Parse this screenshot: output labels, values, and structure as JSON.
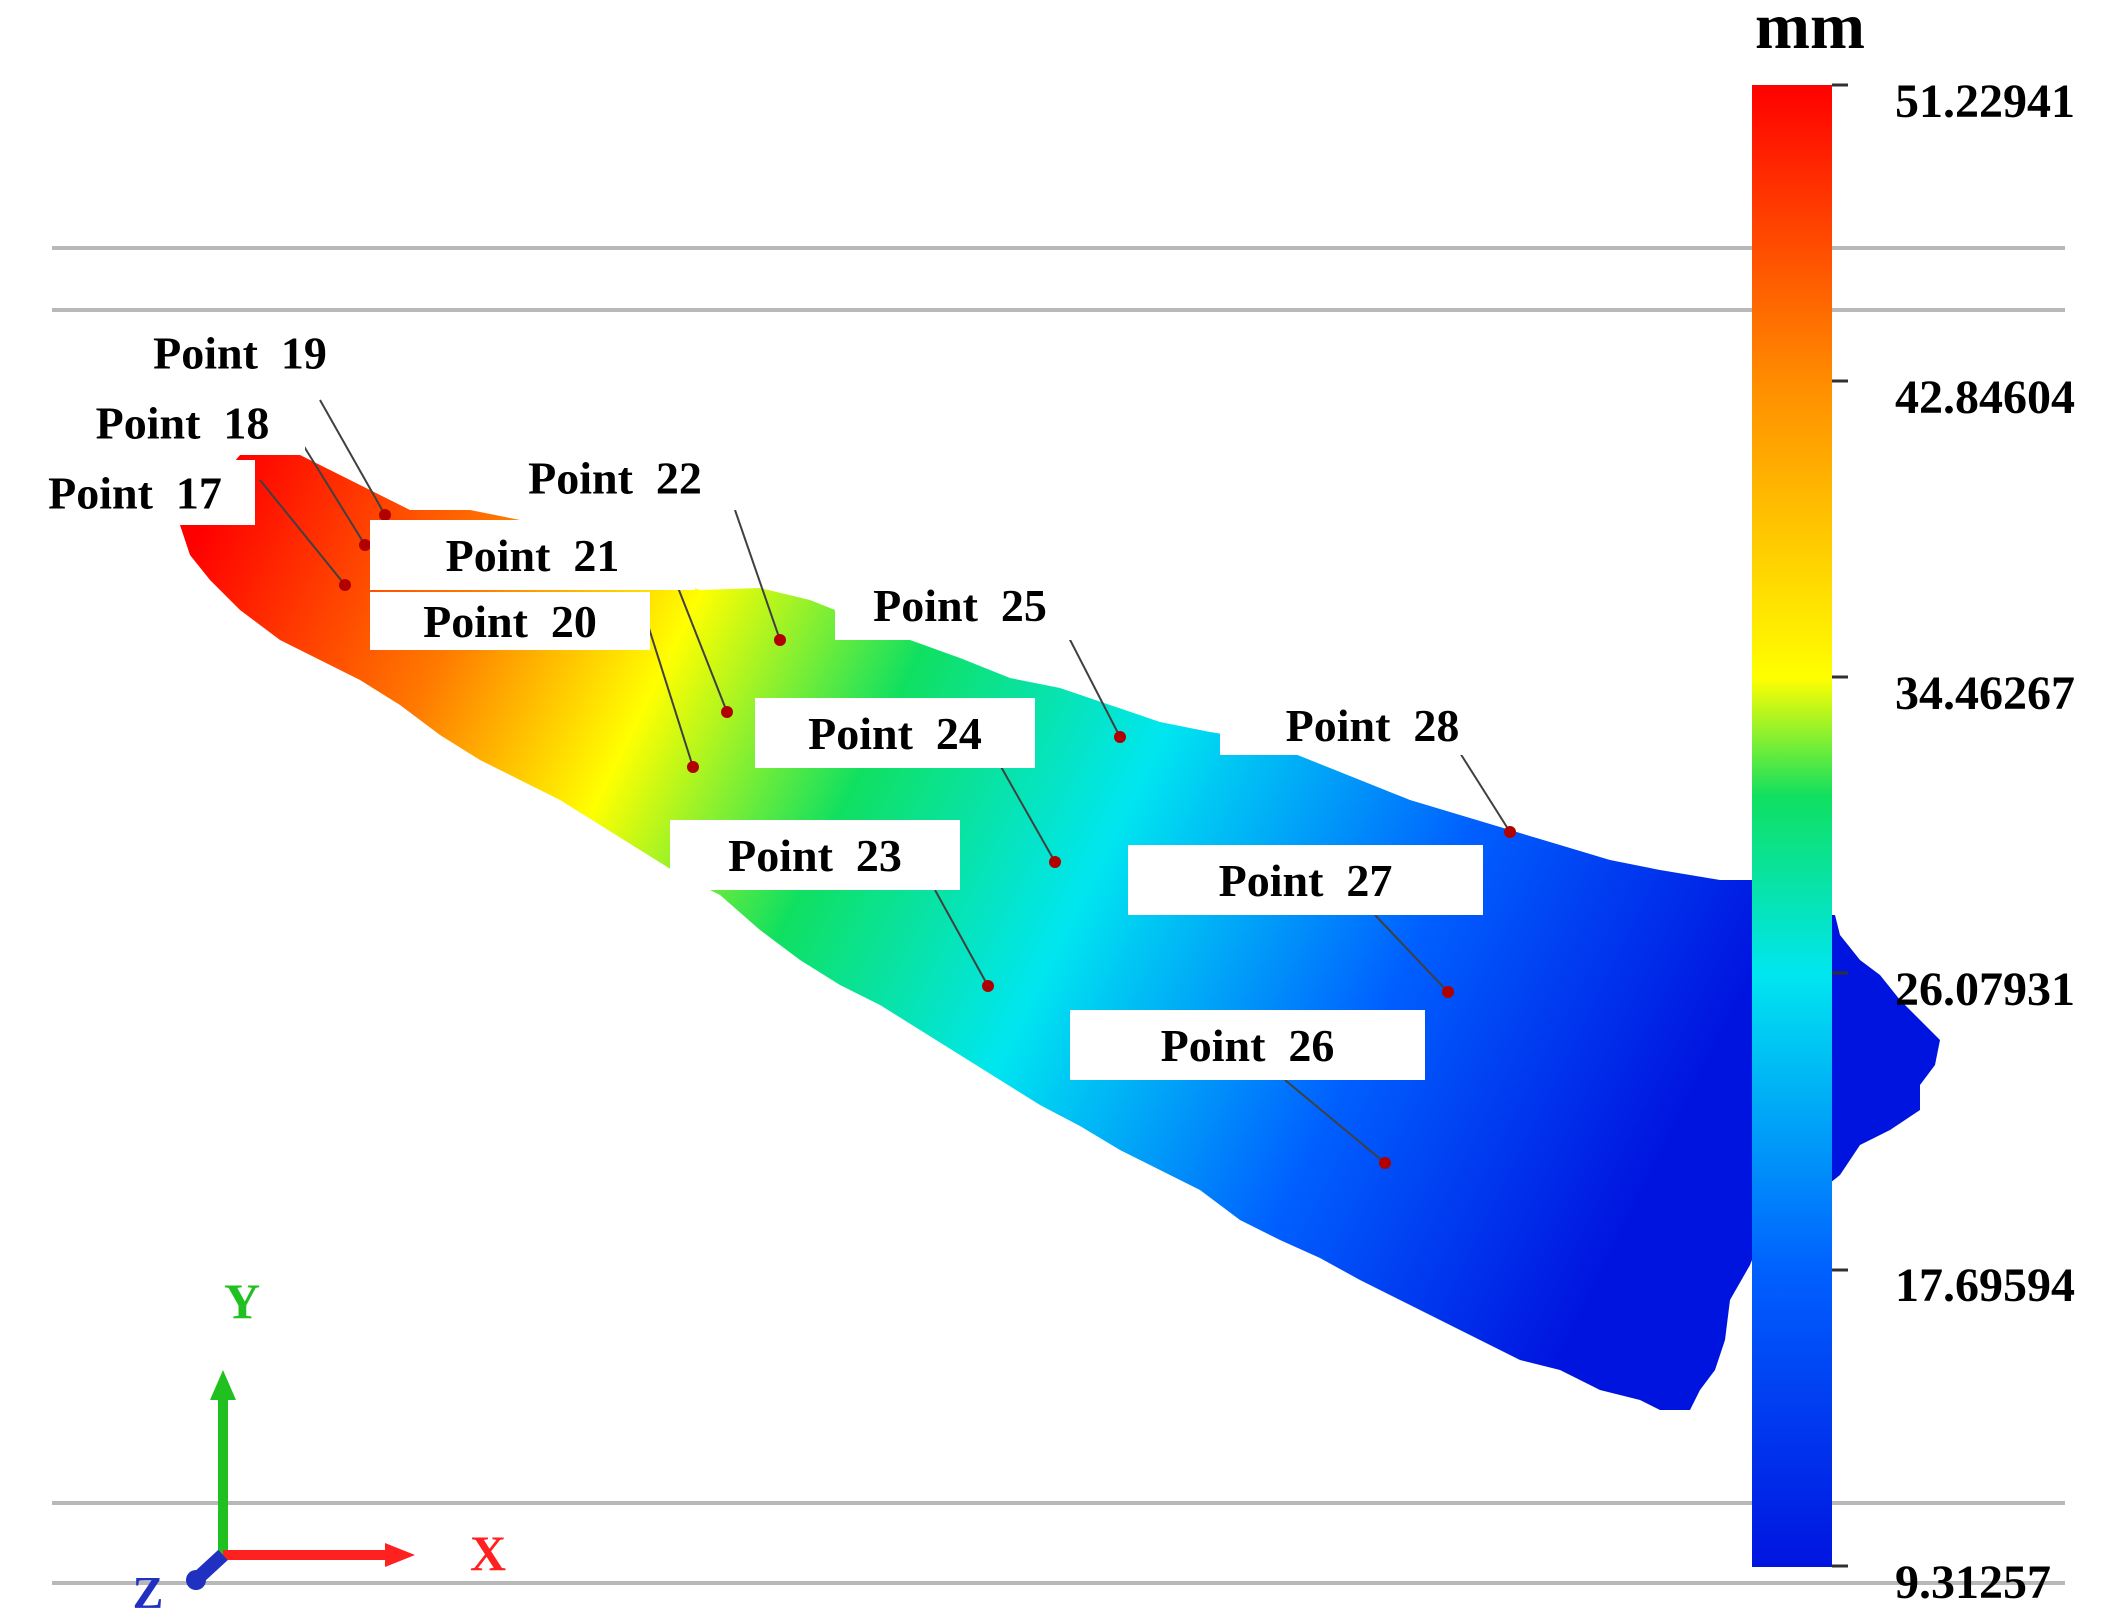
{
  "units_label": "mm",
  "colorbar": {
    "stops": [
      "#0014e0",
      "#0060ff",
      "#00e6f0",
      "#10e060",
      "#ffff00",
      "#ff8c00",
      "#ff0000"
    ],
    "tick_labels": [
      "51.22941",
      "42.84604",
      "34.46267",
      "26.07931",
      "17.69594",
      "9.31257"
    ]
  },
  "points": [
    {
      "label": "Point  17"
    },
    {
      "label": "Point  18"
    },
    {
      "label": "Point  19"
    },
    {
      "label": "Point  20"
    },
    {
      "label": "Point  21"
    },
    {
      "label": "Point  22"
    },
    {
      "label": "Point  23"
    },
    {
      "label": "Point  24"
    },
    {
      "label": "Point  25"
    },
    {
      "label": "Point  26"
    },
    {
      "label": "Point  27"
    },
    {
      "label": "Point  28"
    }
  ],
  "axes": {
    "x_label": "X",
    "y_label": "Y",
    "z_label": "Z",
    "x_color": "#ff2020",
    "y_color": "#20c020",
    "z_color": "#2030c0"
  },
  "colors": {
    "marker": "#b00000",
    "guide_line": "#b8b8b8"
  }
}
